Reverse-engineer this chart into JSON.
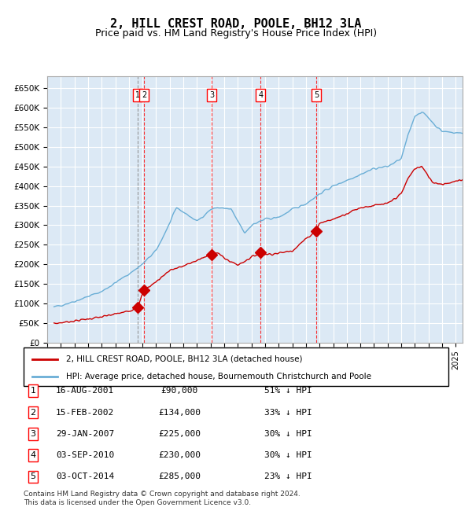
{
  "title": "2, HILL CREST ROAD, POOLE, BH12 3LA",
  "subtitle": "Price paid vs. HM Land Registry's House Price Index (HPI)",
  "title_fontsize": 11,
  "subtitle_fontsize": 9,
  "bg_color": "#dce9f5",
  "grid_color": "#ffffff",
  "hpi_color": "#6aaed6",
  "price_color": "#cc0000",
  "sale_marker_color": "#cc0000",
  "xlabel": "",
  "ylabel": "",
  "ylim": [
    0,
    680000
  ],
  "yticks": [
    0,
    50000,
    100000,
    150000,
    200000,
    250000,
    300000,
    350000,
    400000,
    450000,
    500000,
    550000,
    600000,
    650000
  ],
  "ytick_labels": [
    "£0",
    "£50K",
    "£100K",
    "£150K",
    "£200K",
    "£250K",
    "£300K",
    "£350K",
    "£400K",
    "£450K",
    "£500K",
    "£550K",
    "£600K",
    "£650K"
  ],
  "sale_dates_num": [
    2001.62,
    2002.12,
    2007.08,
    2010.67,
    2014.75
  ],
  "sale_prices": [
    90000,
    134000,
    225000,
    230000,
    285000
  ],
  "sale_labels": [
    "1",
    "2",
    "3",
    "4",
    "5"
  ],
  "vline1_x": 2001.62,
  "vline2_x": 2002.12,
  "vline3_x": 2007.08,
  "vline4_x": 2010.67,
  "vline5_x": 2014.75,
  "legend_entries": [
    "2, HILL CREST ROAD, POOLE, BH12 3LA (detached house)",
    "HPI: Average price, detached house, Bournemouth Christchurch and Poole"
  ],
  "table_data": [
    [
      "1",
      "16-AUG-2001",
      "£90,000",
      "51% ↓ HPI"
    ],
    [
      "2",
      "15-FEB-2002",
      "£134,000",
      "33% ↓ HPI"
    ],
    [
      "3",
      "29-JAN-2007",
      "£225,000",
      "30% ↓ HPI"
    ],
    [
      "4",
      "03-SEP-2010",
      "£230,000",
      "30% ↓ HPI"
    ],
    [
      "5",
      "03-OCT-2014",
      "£285,000",
      "23% ↓ HPI"
    ]
  ],
  "footnote": "Contains HM Land Registry data © Crown copyright and database right 2024.\nThis data is licensed under the Open Government Licence v3.0.",
  "xmin": 1995.5,
  "xmax": 2025.5
}
